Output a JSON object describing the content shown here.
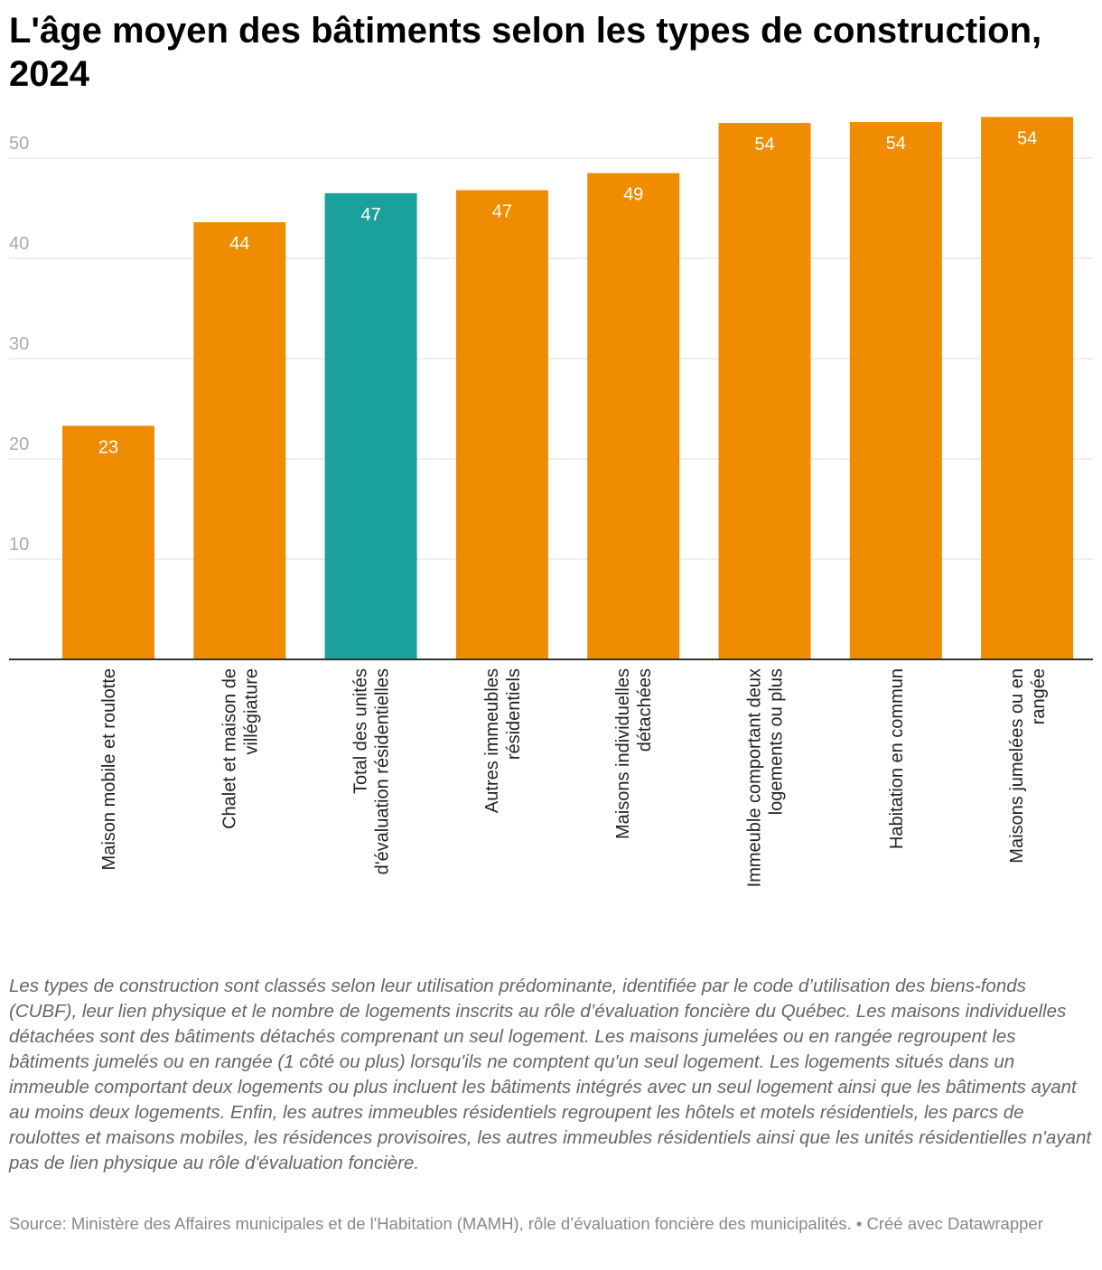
{
  "chart_data": {
    "type": "bar",
    "title": "L'âge moyen des bâtiments selon les types de construction, 2024",
    "categories": [
      "Maison mobile et roulotte",
      "Chalet et maison de villégiature",
      "Total des unités d'évaluation résidentielles",
      "Autres immeubles résidentiels",
      "Maisons individuelles détachées",
      "Immeuble comportant deux logements ou plus",
      "Habitation en commun",
      "Maisons jumelées ou en rangée"
    ],
    "values": [
      23.3,
      43.6,
      46.5,
      46.8,
      48.5,
      53.5,
      53.6,
      54.1
    ],
    "value_labels": [
      "23",
      "44",
      "47",
      "47",
      "49",
      "54",
      "54",
      "54"
    ],
    "colors": [
      "#f08c00",
      "#f08c00",
      "#1aa19b",
      "#f08c00",
      "#f08c00",
      "#f08c00",
      "#f08c00",
      "#f08c00"
    ],
    "ylim": [
      0,
      55
    ],
    "yticks": [
      10,
      20,
      30,
      40,
      50
    ],
    "grid": true,
    "notes": "Les types de construction sont classés selon leur utilisation prédominante, identifiée par le code d’utilisation des biens-fonds (CUBF), leur lien physique et le nombre de logements inscrits au rôle d’évaluation foncière du Québec. Les maisons individuelles détachées sont des bâtiments détachés comprenant un seul logement. Les maisons jumelées ou en rangée regroupent les bâtiments jumelés ou en rangée (1 côté ou plus) lorsqu'ils ne comptent qu'un seul logement. Les logements situés dans un immeuble comportant deux logements ou plus incluent les bâtiments intégrés avec un seul logement ainsi que les bâtiments ayant au moins deux logements. Enfin, les autres immeubles résidentiels regroupent les hôtels et motels résidentiels, les parcs de roulottes et maisons mobiles, les résidences provisoires, les autres immeubles résidentiels ainsi que les unités résidentielles n'ayant pas de lien physique au rôle d'évaluation foncière.",
    "source": "Source: Ministère des Affaires municipales et de l'Habitation (MAMH), rôle d’évaluation foncière des municipalités. • Créé avec Datawrapper"
  }
}
